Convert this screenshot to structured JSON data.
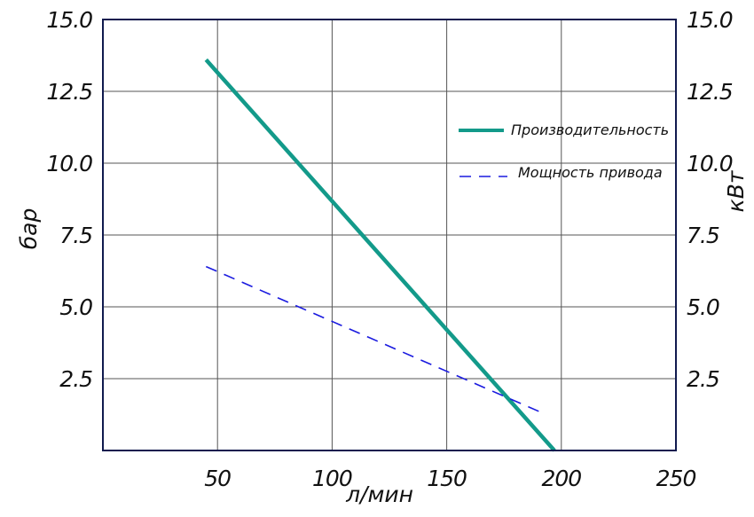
{
  "chart_data": {
    "type": "line",
    "title": "",
    "xlabel": "л/мин",
    "ylabel": "бар",
    "y2label": "кВт",
    "x_ticks": [
      "50",
      "100",
      "150",
      "200",
      "250"
    ],
    "y_ticks": [
      "15.0",
      "12.5",
      "10.0",
      "7.5",
      "5.0",
      "2.5"
    ],
    "y2_ticks": [
      "15.0",
      "12.5",
      "10.0",
      "7.5",
      "5.0",
      "2.5"
    ],
    "xlim": [
      0,
      250
    ],
    "ylim": [
      0,
      15
    ],
    "y2lim": [
      0,
      15
    ],
    "grid": true,
    "legend_position": "top-right",
    "series": [
      {
        "name": "Производительность",
        "axis": "left",
        "style": "solid",
        "color": "#139a8a",
        "x": [
          45,
          197
        ],
        "y": [
          13.6,
          0
        ]
      },
      {
        "name": "Мощность привода",
        "axis": "right",
        "style": "dashed",
        "color": "#1a1adf",
        "x": [
          45,
          192
        ],
        "y": [
          6.4,
          1.3
        ]
      }
    ]
  },
  "colors": {
    "frame": "#101a4e",
    "grid": "#555555"
  }
}
